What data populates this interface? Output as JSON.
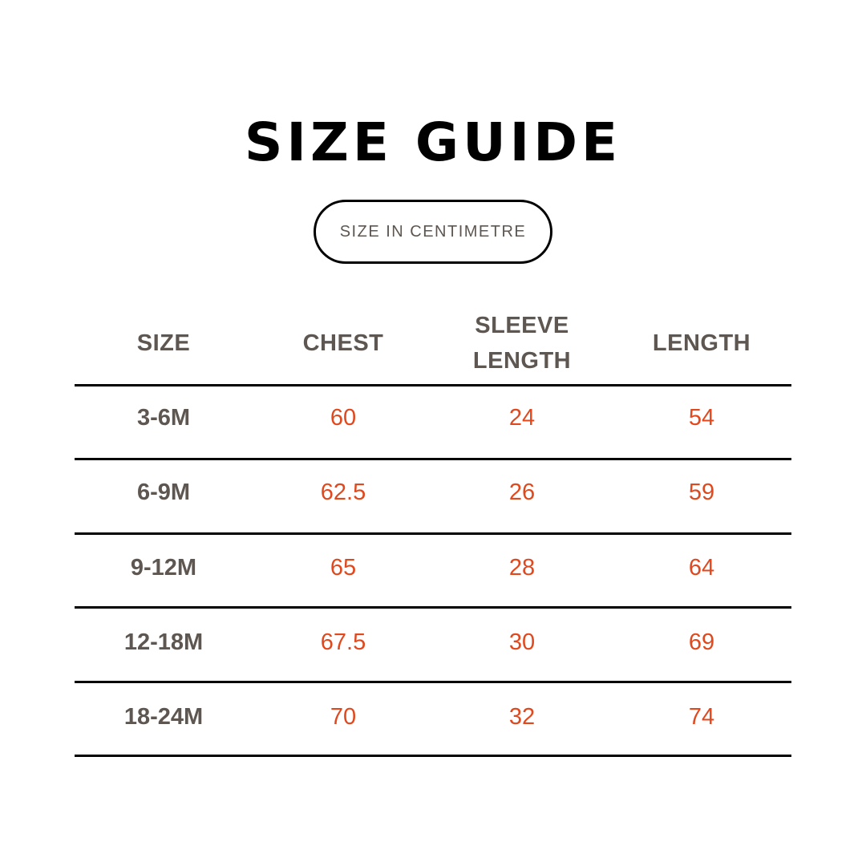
{
  "title": "SIZE GUIDE",
  "unit_badge": "SIZE IN CENTIMETRE",
  "colors": {
    "text": "#5e5650",
    "value": "#e0481e",
    "title": "#000000"
  },
  "table": {
    "headers": [
      "SIZE",
      "CHEST",
      "SLEEVE LENGTH",
      "LENGTH"
    ],
    "rows": [
      [
        "3-6M",
        "60",
        "24",
        "54"
      ],
      [
        "6-9M",
        "62.5",
        "26",
        "59"
      ],
      [
        "9-12M",
        "65",
        "28",
        "64"
      ],
      [
        "12-18M",
        "67.5",
        "30",
        "69"
      ],
      [
        "18-24M",
        "70",
        "32",
        "74"
      ]
    ]
  }
}
